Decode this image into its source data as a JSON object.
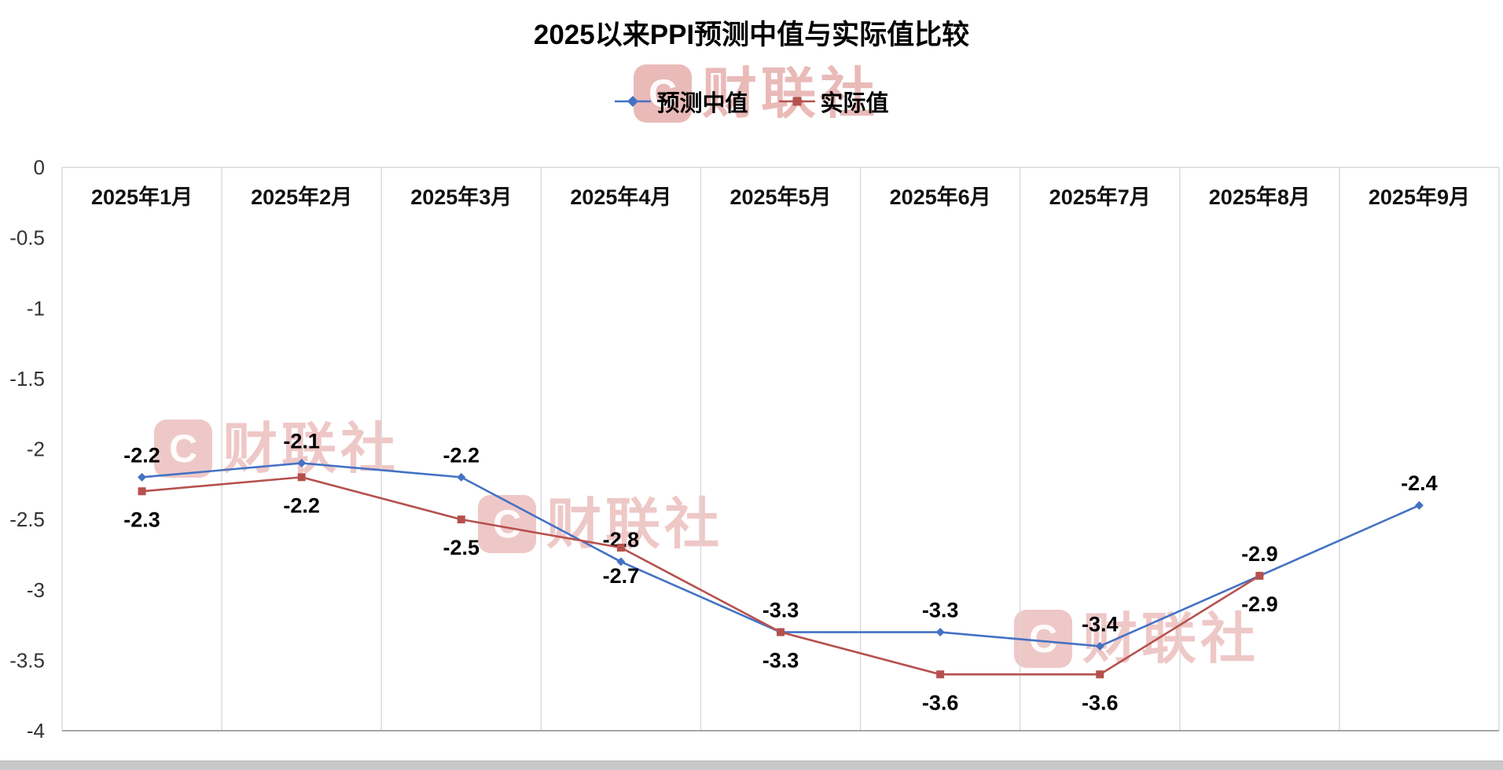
{
  "watermark": {
    "logo_letter": "C",
    "text": "财联社"
  },
  "chart_data": {
    "type": "line",
    "title": "2025以来PPI预测中值与实际值比较",
    "categories": [
      "2025年1月",
      "2025年2月",
      "2025年3月",
      "2025年4月",
      "2025年5月",
      "2025年6月",
      "2025年7月",
      "2025年8月",
      "2025年9月"
    ],
    "series": [
      {
        "name": "预测中值",
        "color": "#4472C4",
        "marker": "diamond",
        "values": [
          -2.2,
          -2.1,
          -2.2,
          -2.8,
          -3.3,
          -3.3,
          -3.4,
          -2.9,
          -2.4
        ]
      },
      {
        "name": "实际值",
        "color": "#B5514D",
        "marker": "square",
        "values": [
          -2.3,
          -2.2,
          -2.5,
          -2.7,
          -3.3,
          -3.6,
          -3.6,
          -2.9,
          null
        ]
      }
    ],
    "ylim": [
      -4,
      0
    ],
    "yticks": [
      0,
      -0.5,
      -1,
      -1.5,
      -2,
      -2.5,
      -3,
      -3.5,
      -4
    ],
    "ytick_labels": [
      "0",
      "-0.5",
      "-1",
      "-1.5",
      "-2",
      "-2.5",
      "-3",
      "-3.5",
      "-4"
    ],
    "grid": "vertical-columns",
    "legend_position": "top",
    "data_labels": true,
    "colors": {
      "gridline": "#d9d9d9",
      "axis": "#9b9b9b",
      "label": "#000000",
      "tick_text": "#333333"
    }
  }
}
